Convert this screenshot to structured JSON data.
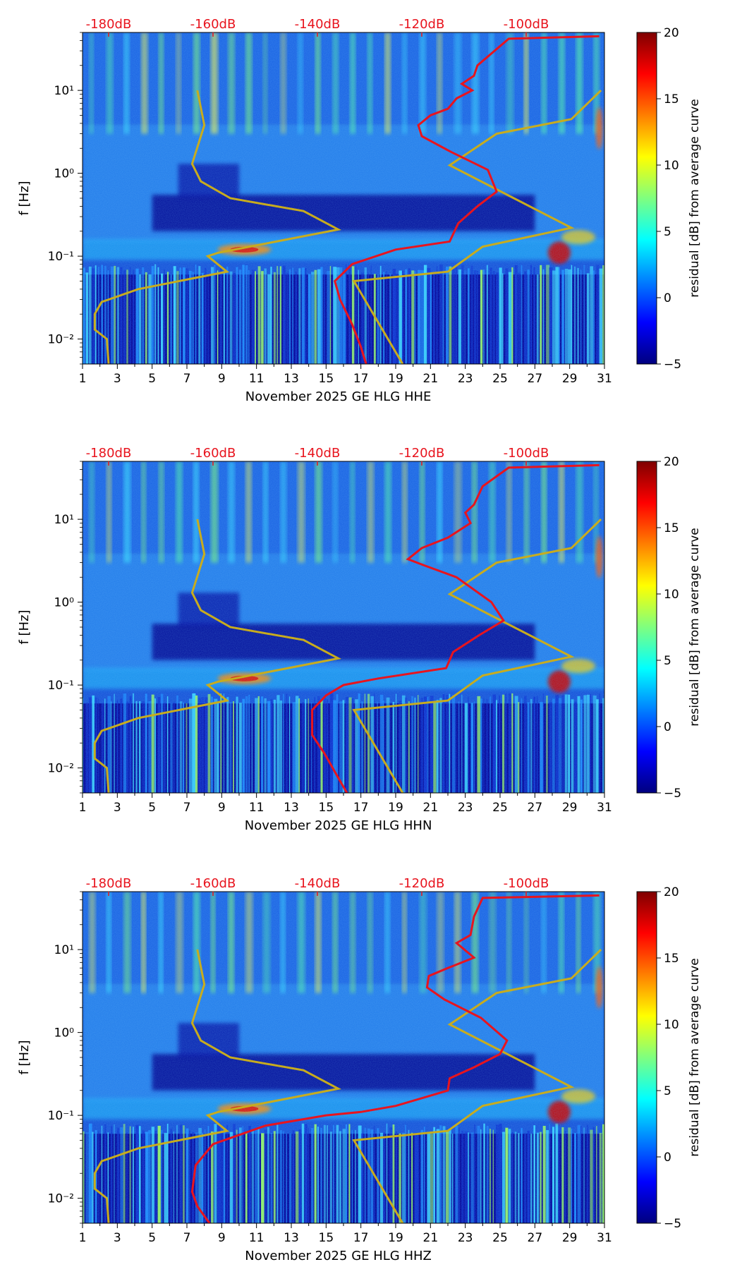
{
  "colors": {
    "red_curve": "#e8141e",
    "gold_curve": "#c8ac1e",
    "db_labels": "#e8141e",
    "colormap": [
      "#00007f",
      "#0000ff",
      "#007fff",
      "#00ffff",
      "#7fff7f",
      "#ffff00",
      "#ff7f00",
      "#ff0000",
      "#7f0000"
    ]
  },
  "chart_data": [
    {
      "type": "heatmap",
      "title": "",
      "xlabel": "November 2025 GE HLG  HHE",
      "ylabel": "f [Hz]",
      "x_ticks": [
        "1",
        "3",
        "5",
        "7",
        "9",
        "11",
        "13",
        "15",
        "17",
        "19",
        "21",
        "23",
        "25",
        "27",
        "29",
        "31"
      ],
      "x_range": [
        1,
        31
      ],
      "y_scale": "log",
      "y_range": [
        0.005,
        50
      ],
      "y_ticks": [
        0.01,
        0.1,
        1,
        10
      ],
      "y_tick_labels": [
        "10⁻²",
        "10⁻¹",
        "10⁰",
        "10¹"
      ],
      "top_ticks": [
        "-180dB",
        "-160dB",
        "-140dB",
        "-120dB",
        "-100dB"
      ],
      "top_range": [
        -185,
        -85
      ],
      "colorbar": {
        "label": "residual [dB] from average curve",
        "range": [
          -5,
          20
        ],
        "ticks": [
          "−5",
          "0",
          "5",
          "10",
          "15",
          "20"
        ]
      },
      "gold_curve": {
        "name": "",
        "points": [
          [
            7.6,
            10
          ],
          [
            8.0,
            3.8
          ],
          [
            7.3,
            1.3
          ],
          [
            7.8,
            0.8
          ],
          [
            9.5,
            0.5
          ],
          [
            13.7,
            0.35
          ],
          [
            15.7,
            0.21
          ],
          [
            8.8,
            0.11
          ],
          [
            8.2,
            0.1
          ],
          [
            9.3,
            0.065
          ],
          [
            4.2,
            0.04
          ],
          [
            2.1,
            0.028
          ],
          [
            1.7,
            0.02
          ],
          [
            1.7,
            0.013
          ],
          [
            2.4,
            0.01
          ],
          [
            2.5,
            0.005
          ]
        ]
      },
      "gold_curve_2": {
        "name": "",
        "points": [
          [
            30.8,
            10
          ],
          [
            29.1,
            4.5
          ],
          [
            24.8,
            3
          ],
          [
            22.1,
            1.25
          ],
          [
            29.1,
            0.22
          ],
          [
            24.0,
            0.13
          ],
          [
            22.0,
            0.065
          ],
          [
            16.6,
            0.05
          ],
          [
            19.4,
            0.005
          ]
        ]
      },
      "red_curve": {
        "name": "",
        "points": [
          [
            30.7,
            45
          ],
          [
            25.5,
            42
          ],
          [
            23.7,
            20
          ],
          [
            23.5,
            15
          ],
          [
            22.8,
            12
          ],
          [
            23.4,
            10
          ],
          [
            22.5,
            8
          ],
          [
            22.0,
            6
          ],
          [
            21.0,
            5
          ],
          [
            20.3,
            3.8
          ],
          [
            20.5,
            2.8
          ],
          [
            22.2,
            1.8
          ],
          [
            24.3,
            1.1
          ],
          [
            24.8,
            0.6
          ],
          [
            23.7,
            0.4
          ],
          [
            22.6,
            0.25
          ],
          [
            22.1,
            0.15
          ],
          [
            19.0,
            0.12
          ],
          [
            16.5,
            0.08
          ],
          [
            15.5,
            0.05
          ],
          [
            15.8,
            0.03
          ],
          [
            16.5,
            0.015
          ],
          [
            17.0,
            0.008
          ],
          [
            17.3,
            0.005
          ]
        ]
      }
    },
    {
      "type": "heatmap",
      "title": "",
      "xlabel": "November 2025 GE HLG  HHN",
      "ylabel": "f [Hz]",
      "x_ticks": [
        "1",
        "3",
        "5",
        "7",
        "9",
        "11",
        "13",
        "15",
        "17",
        "19",
        "21",
        "23",
        "25",
        "27",
        "29",
        "31"
      ],
      "x_range": [
        1,
        31
      ],
      "y_scale": "log",
      "y_range": [
        0.005,
        50
      ],
      "y_ticks": [
        0.01,
        0.1,
        1,
        10
      ],
      "y_tick_labels": [
        "10⁻²",
        "10⁻¹",
        "10⁰",
        "10¹"
      ],
      "top_ticks": [
        "-180dB",
        "-160dB",
        "-140dB",
        "-120dB",
        "-100dB"
      ],
      "top_range": [
        -185,
        -85
      ],
      "colorbar": {
        "label": "residual [dB] from average curve",
        "range": [
          -5,
          20
        ],
        "ticks": [
          "−5",
          "0",
          "5",
          "10",
          "15",
          "20"
        ]
      },
      "gold_curve": {
        "name": "",
        "points": [
          [
            7.6,
            10
          ],
          [
            8.0,
            3.8
          ],
          [
            7.3,
            1.3
          ],
          [
            7.8,
            0.8
          ],
          [
            9.5,
            0.5
          ],
          [
            13.7,
            0.35
          ],
          [
            15.7,
            0.21
          ],
          [
            8.8,
            0.11
          ],
          [
            8.2,
            0.1
          ],
          [
            9.3,
            0.065
          ],
          [
            4.2,
            0.04
          ],
          [
            2.1,
            0.028
          ],
          [
            1.7,
            0.02
          ],
          [
            1.7,
            0.013
          ],
          [
            2.4,
            0.01
          ],
          [
            2.5,
            0.005
          ]
        ]
      },
      "gold_curve_2": {
        "name": "",
        "points": [
          [
            30.8,
            10
          ],
          [
            29.1,
            4.5
          ],
          [
            24.8,
            3
          ],
          [
            22.1,
            1.25
          ],
          [
            29.1,
            0.22
          ],
          [
            24.0,
            0.13
          ],
          [
            22.0,
            0.065
          ],
          [
            16.6,
            0.05
          ],
          [
            19.4,
            0.005
          ]
        ]
      },
      "red_curve": {
        "name": "",
        "points": [
          [
            30.7,
            45
          ],
          [
            25.5,
            42
          ],
          [
            24.0,
            25
          ],
          [
            23.5,
            15
          ],
          [
            23.0,
            12
          ],
          [
            23.3,
            9
          ],
          [
            22.0,
            6
          ],
          [
            20.5,
            4.5
          ],
          [
            19.7,
            3.3
          ],
          [
            20.6,
            2.8
          ],
          [
            22.5,
            2.0
          ],
          [
            24.5,
            1.0
          ],
          [
            25.2,
            0.6
          ],
          [
            23.8,
            0.4
          ],
          [
            22.3,
            0.25
          ],
          [
            21.9,
            0.16
          ],
          [
            18.0,
            0.12
          ],
          [
            16.0,
            0.1
          ],
          [
            15.0,
            0.075
          ],
          [
            14.2,
            0.05
          ],
          [
            14.2,
            0.025
          ],
          [
            14.9,
            0.015
          ],
          [
            15.5,
            0.009
          ],
          [
            16.2,
            0.005
          ]
        ]
      }
    },
    {
      "type": "heatmap",
      "title": "",
      "xlabel": "November 2025 GE HLG  HHZ",
      "ylabel": "f [Hz]",
      "x_ticks": [
        "1",
        "3",
        "5",
        "7",
        "9",
        "11",
        "13",
        "15",
        "17",
        "19",
        "21",
        "23",
        "25",
        "27",
        "29",
        "31"
      ],
      "x_range": [
        1,
        31
      ],
      "y_scale": "log",
      "y_range": [
        0.005,
        50
      ],
      "y_ticks": [
        0.01,
        0.1,
        1,
        10
      ],
      "y_tick_labels": [
        "10⁻²",
        "10⁻¹",
        "10⁰",
        "10¹"
      ],
      "top_ticks": [
        "-180dB",
        "-160dB",
        "-140dB",
        "-120dB",
        "-100dB"
      ],
      "top_range": [
        -185,
        -85
      ],
      "colorbar": {
        "label": "residual [dB] from average curve",
        "range": [
          -5,
          20
        ],
        "ticks": [
          "−5",
          "0",
          "5",
          "10",
          "15",
          "20"
        ]
      },
      "gold_curve": {
        "name": "",
        "points": [
          [
            7.6,
            10
          ],
          [
            8.0,
            3.8
          ],
          [
            7.3,
            1.3
          ],
          [
            7.8,
            0.8
          ],
          [
            9.5,
            0.5
          ],
          [
            13.7,
            0.35
          ],
          [
            15.7,
            0.21
          ],
          [
            8.8,
            0.11
          ],
          [
            8.2,
            0.1
          ],
          [
            9.3,
            0.065
          ],
          [
            4.2,
            0.04
          ],
          [
            2.1,
            0.028
          ],
          [
            1.7,
            0.02
          ],
          [
            1.7,
            0.013
          ],
          [
            2.4,
            0.01
          ],
          [
            2.5,
            0.005
          ]
        ]
      },
      "gold_curve_2": {
        "name": "",
        "points": [
          [
            30.8,
            10
          ],
          [
            29.1,
            4.5
          ],
          [
            24.8,
            3
          ],
          [
            22.1,
            1.25
          ],
          [
            29.1,
            0.22
          ],
          [
            24.0,
            0.13
          ],
          [
            22.0,
            0.065
          ],
          [
            16.6,
            0.05
          ],
          [
            19.4,
            0.005
          ]
        ]
      },
      "red_curve": {
        "name": "",
        "points": [
          [
            30.7,
            45
          ],
          [
            24.0,
            42
          ],
          [
            23.5,
            25
          ],
          [
            23.3,
            15
          ],
          [
            22.5,
            12
          ],
          [
            23.5,
            8
          ],
          [
            22.0,
            6
          ],
          [
            20.9,
            4.8
          ],
          [
            20.8,
            3.5
          ],
          [
            21.8,
            2.5
          ],
          [
            23.9,
            1.5
          ],
          [
            25.4,
            0.8
          ],
          [
            25.0,
            0.55
          ],
          [
            23.5,
            0.38
          ],
          [
            22.1,
            0.28
          ],
          [
            22.0,
            0.2
          ],
          [
            19.0,
            0.13
          ],
          [
            17.0,
            0.11
          ],
          [
            15.0,
            0.1
          ],
          [
            11.5,
            0.075
          ],
          [
            8.5,
            0.045
          ],
          [
            7.5,
            0.025
          ],
          [
            7.3,
            0.012
          ],
          [
            7.6,
            0.008
          ],
          [
            8.3,
            0.005
          ]
        ]
      }
    }
  ]
}
